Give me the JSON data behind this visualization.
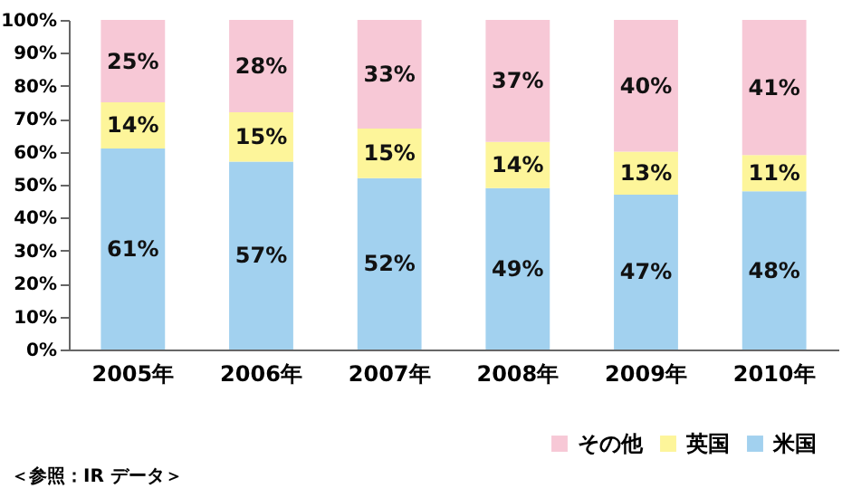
{
  "chart_data": {
    "type": "bar",
    "stacked": true,
    "categories": [
      "2005年",
      "2006年",
      "2007年",
      "2008年",
      "2009年",
      "2010年"
    ],
    "series": [
      {
        "name": "米国",
        "color": "#a2d1ef",
        "values": [
          61,
          57,
          52,
          49,
          47,
          48
        ],
        "value_labels": [
          "61%",
          "57%",
          "52%",
          "49%",
          "47%",
          "48%"
        ]
      },
      {
        "name": "英国",
        "color": "#fdf59a",
        "values": [
          14,
          15,
          15,
          14,
          13,
          11
        ],
        "value_labels": [
          "14%",
          "15%",
          "15%",
          "14%",
          "13%",
          "11%"
        ]
      },
      {
        "name": "その他",
        "color": "#f7c8d6",
        "values": [
          25,
          28,
          33,
          37,
          40,
          41
        ],
        "value_labels": [
          "25%",
          "28%",
          "33%",
          "37%",
          "40%",
          "41%"
        ]
      }
    ],
    "ylim": [
      0,
      100
    ],
    "yticks": [
      {
        "value": 0,
        "label": "0%"
      },
      {
        "value": 10,
        "label": "10%"
      },
      {
        "value": 20,
        "label": "20%"
      },
      {
        "value": 30,
        "label": "30%"
      },
      {
        "value": 40,
        "label": "40%"
      },
      {
        "value": 50,
        "label": "50%"
      },
      {
        "value": 60,
        "label": "60%"
      },
      {
        "value": 70,
        "label": "70%"
      },
      {
        "value": 80,
        "label": "80%"
      },
      {
        "value": 90,
        "label": "90%"
      },
      {
        "value": 100,
        "label": "100%"
      }
    ],
    "grid": false,
    "legend": "bottom right",
    "annotations": [
      "＜参照：IR データ＞"
    ]
  }
}
